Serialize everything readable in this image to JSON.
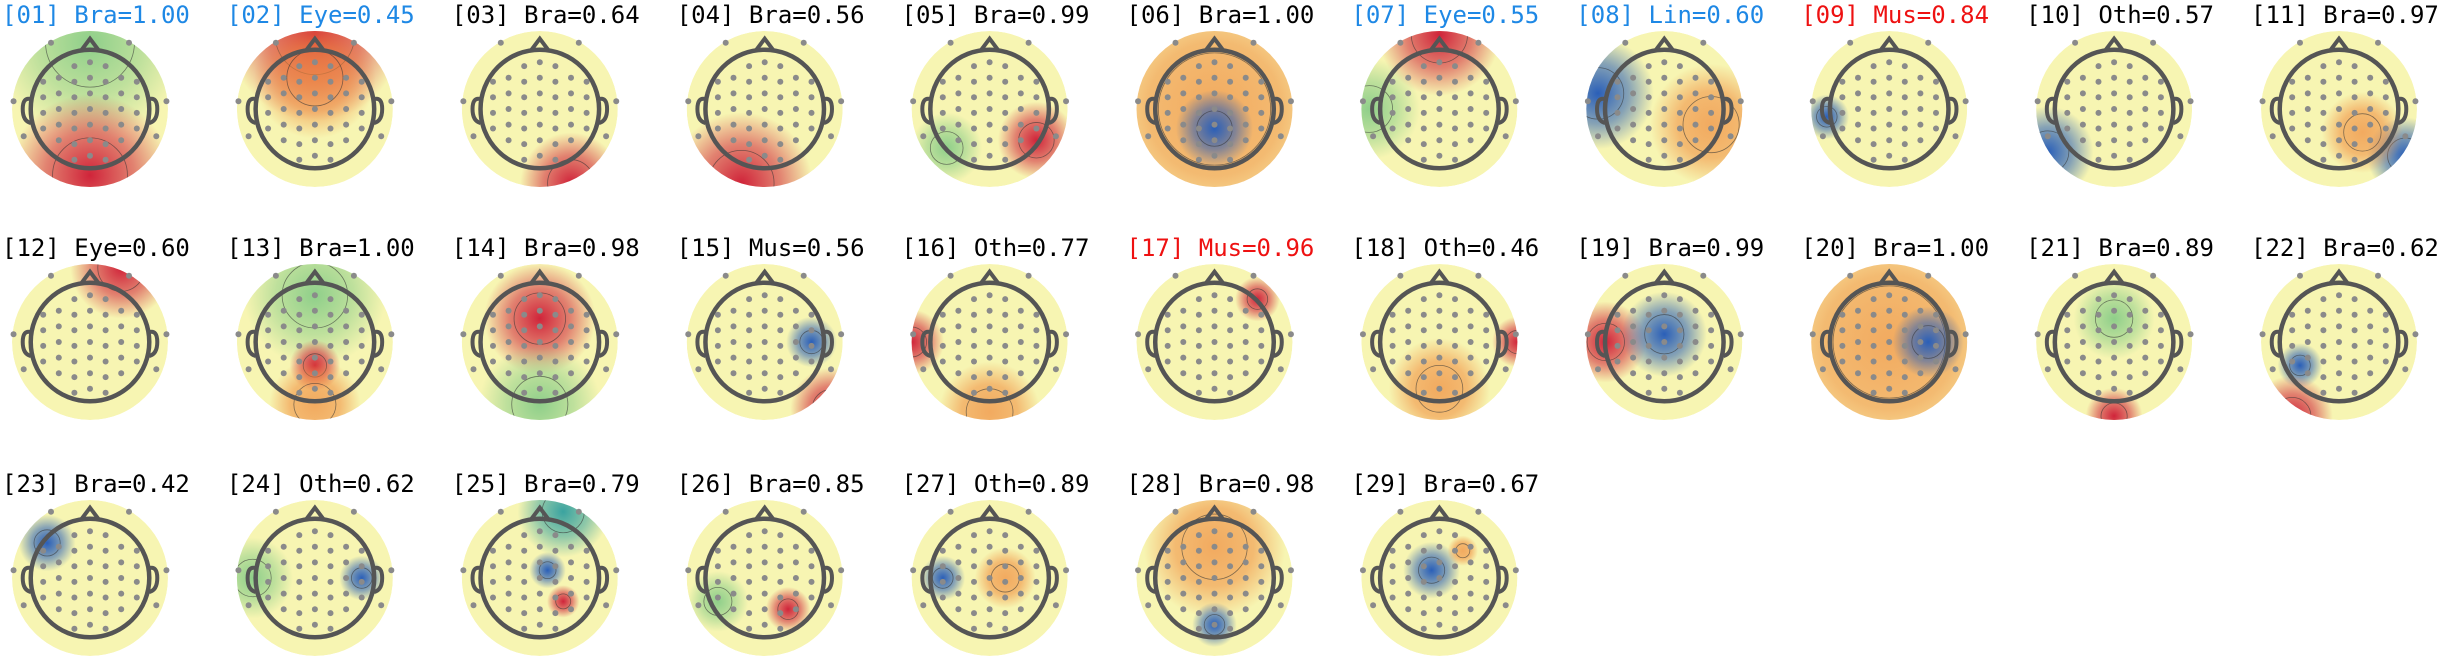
{
  "components": [
    {
      "label": "[01] Bra=1.00",
      "color": "#1e88e5"
    },
    {
      "label": "[02] Eye=0.45",
      "color": "#1e88e5"
    },
    {
      "label": "[03] Bra=0.64",
      "color": "#000000"
    },
    {
      "label": "[04] Bra=0.56",
      "color": "#000000"
    },
    {
      "label": "[05] Bra=0.99",
      "color": "#000000"
    },
    {
      "label": "[06] Bra=1.00",
      "color": "#000000"
    },
    {
      "label": "[07] Eye=0.55",
      "color": "#1e88e5"
    },
    {
      "label": "[08] Lin=0.60",
      "color": "#1e88e5"
    },
    {
      "label": "[09] Mus=0.84",
      "color": "#ee1111"
    },
    {
      "label": "[10] Oth=0.57",
      "color": "#000000"
    },
    {
      "label": "[11] Bra=0.97",
      "color": "#000000"
    },
    {
      "label": "[12] Eye=0.60",
      "color": "#000000"
    },
    {
      "label": "[13] Bra=1.00",
      "color": "#000000"
    },
    {
      "label": "[14] Bra=0.98",
      "color": "#000000"
    },
    {
      "label": "[15] Mus=0.56",
      "color": "#000000"
    },
    {
      "label": "[16] Oth=0.77",
      "color": "#000000"
    },
    {
      "label": "[17] Mus=0.96",
      "color": "#ee1111"
    },
    {
      "label": "[18] Oth=0.46",
      "color": "#000000"
    },
    {
      "label": "[19] Bra=0.99",
      "color": "#000000"
    },
    {
      "label": "[20] Bra=1.00",
      "color": "#000000"
    },
    {
      "label": "[21] Bra=0.89",
      "color": "#000000"
    },
    {
      "label": "[22] Bra=0.62",
      "color": "#000000"
    },
    {
      "label": "[23] Bra=0.42",
      "color": "#000000"
    },
    {
      "label": "[24] Oth=0.62",
      "color": "#000000"
    },
    {
      "label": "[25] Bra=0.79",
      "color": "#000000"
    },
    {
      "label": "[26] Bra=0.85",
      "color": "#000000"
    },
    {
      "label": "[27] Oth=0.89",
      "color": "#000000"
    },
    {
      "label": "[28] Bra=0.98",
      "color": "#000000"
    },
    {
      "label": "[29] Bra=0.67",
      "color": "#000000"
    }
  ]
}
